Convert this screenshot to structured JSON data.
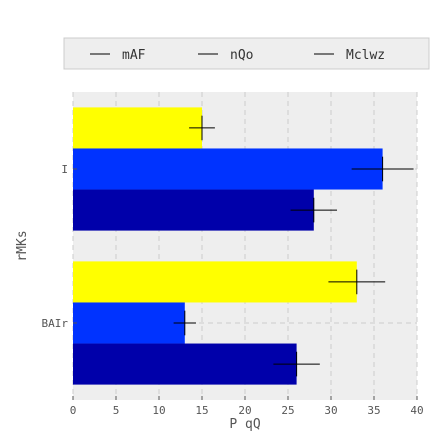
{
  "chart_data": {
    "type": "bar",
    "orientation": "horizontal",
    "categories": [
      "BAIr",
      "I"
    ],
    "series": [
      {
        "name": "mAF",
        "values": [
          26,
          28
        ],
        "errors": [
          2.7,
          2.7
        ],
        "color": "#0000aa"
      },
      {
        "name": "nQo",
        "values": [
          13,
          36
        ],
        "errors": [
          1.3,
          3.6
        ],
        "color": "#0033ff"
      },
      {
        "name": "Mclwz",
        "values": [
          33,
          15
        ],
        "errors": [
          3.3,
          1.5
        ],
        "color": "#ffff00"
      }
    ],
    "xlabel": "P qQ",
    "ylabel": "rMKs",
    "xlim": [
      0,
      40
    ],
    "xticks": [
      "0",
      "5",
      "10",
      "15",
      "20",
      "25",
      "30",
      "35",
      "40"
    ],
    "grid": true,
    "legend": "top"
  }
}
